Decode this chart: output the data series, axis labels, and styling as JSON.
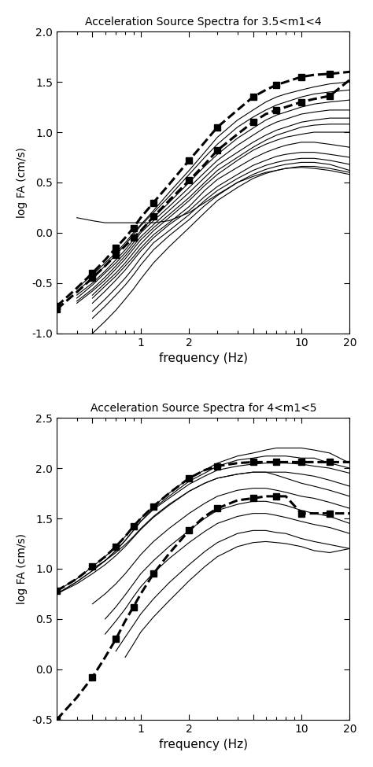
{
  "title1": "Acceleration Source Spectra for 3.5<m1<4",
  "title2": "Acceleration Source Spectra for 4<m1<5",
  "xlabel": "frequency (Hz)",
  "ylabel": "log FA (cm/s)",
  "plot1_dashed_upper_freq": [
    0.3,
    0.4,
    0.5,
    0.6,
    0.7,
    0.8,
    0.9,
    1.0,
    1.2,
    1.5,
    2.0,
    2.5,
    3.0,
    4.0,
    5.0,
    6.0,
    7.0,
    8.0,
    10.0,
    12.0,
    15.0,
    20.0
  ],
  "plot1_dashed_upper_val": [
    -0.73,
    -0.55,
    -0.4,
    -0.27,
    -0.15,
    -0.05,
    0.05,
    0.15,
    0.3,
    0.48,
    0.72,
    0.9,
    1.05,
    1.22,
    1.35,
    1.42,
    1.47,
    1.5,
    1.55,
    1.57,
    1.58,
    1.6
  ],
  "plot1_dashed_lower_freq": [
    0.3,
    0.4,
    0.5,
    0.6,
    0.7,
    0.8,
    0.9,
    1.0,
    1.2,
    1.5,
    2.0,
    2.5,
    3.0,
    4.0,
    5.0,
    6.0,
    7.0,
    8.0,
    10.0,
    12.0,
    15.0,
    20.0
  ],
  "plot1_dashed_lower_val": [
    -0.76,
    -0.59,
    -0.45,
    -0.33,
    -0.22,
    -0.13,
    -0.05,
    0.02,
    0.16,
    0.32,
    0.52,
    0.68,
    0.82,
    0.98,
    1.1,
    1.18,
    1.22,
    1.25,
    1.3,
    1.33,
    1.36,
    1.52
  ],
  "plot1_lines": [
    {
      "freq": [
        0.4,
        0.5,
        0.6,
        0.7,
        0.8,
        0.9,
        1.0,
        1.2,
        1.5,
        2.0,
        2.5,
        3.0,
        4.0,
        5.0,
        6.0,
        7.0,
        8.0,
        10.0,
        12.0,
        15.0,
        20.0
      ],
      "val": [
        -0.55,
        -0.42,
        -0.3,
        -0.2,
        -0.1,
        0.0,
        0.08,
        0.22,
        0.4,
        0.62,
        0.8,
        0.95,
        1.12,
        1.22,
        1.3,
        1.35,
        1.38,
        1.42,
        1.45,
        1.48,
        1.5
      ]
    },
    {
      "freq": [
        0.4,
        0.5,
        0.6,
        0.7,
        0.8,
        0.9,
        1.0,
        1.2,
        1.5,
        2.0,
        2.5,
        3.0,
        4.0,
        5.0,
        6.0,
        7.0,
        8.0,
        10.0,
        12.0,
        15.0,
        20.0
      ],
      "val": [
        -0.58,
        -0.45,
        -0.33,
        -0.22,
        -0.12,
        -0.02,
        0.07,
        0.2,
        0.36,
        0.58,
        0.75,
        0.88,
        1.05,
        1.15,
        1.22,
        1.27,
        1.3,
        1.35,
        1.38,
        1.4,
        1.42
      ]
    },
    {
      "freq": [
        0.4,
        0.5,
        0.6,
        0.7,
        0.8,
        0.9,
        1.0,
        1.2,
        1.5,
        2.0,
        2.5,
        3.0,
        4.0,
        5.0,
        6.0,
        7.0,
        8.0,
        10.0,
        12.0,
        15.0,
        20.0
      ],
      "val": [
        -0.62,
        -0.5,
        -0.38,
        -0.27,
        -0.17,
        -0.07,
        0.02,
        0.15,
        0.3,
        0.5,
        0.66,
        0.78,
        0.94,
        1.04,
        1.12,
        1.17,
        1.2,
        1.25,
        1.28,
        1.3,
        1.32
      ]
    },
    {
      "freq": [
        0.4,
        0.5,
        0.6,
        0.7,
        0.8,
        0.9,
        1.0,
        1.2,
        1.5,
        2.0,
        2.5,
        3.0,
        4.0,
        5.0,
        6.0,
        7.0,
        8.0,
        10.0,
        12.0,
        15.0,
        20.0
      ],
      "val": [
        -0.65,
        -0.52,
        -0.4,
        -0.3,
        -0.2,
        -0.1,
        0.0,
        0.12,
        0.26,
        0.45,
        0.6,
        0.72,
        0.87,
        0.97,
        1.05,
        1.1,
        1.13,
        1.18,
        1.2,
        1.22,
        1.22
      ]
    },
    {
      "freq": [
        0.4,
        0.5,
        0.6,
        0.7,
        0.8,
        0.9,
        1.0,
        1.2,
        1.5,
        2.0,
        2.5,
        3.0,
        4.0,
        5.0,
        6.0,
        7.0,
        8.0,
        10.0,
        12.0,
        15.0,
        20.0
      ],
      "val": [
        -0.68,
        -0.56,
        -0.44,
        -0.33,
        -0.23,
        -0.13,
        -0.04,
        0.08,
        0.22,
        0.4,
        0.55,
        0.67,
        0.8,
        0.9,
        0.97,
        1.02,
        1.05,
        1.1,
        1.12,
        1.14,
        1.14
      ]
    },
    {
      "freq": [
        0.4,
        0.5,
        0.6,
        0.7,
        0.8,
        0.9,
        1.0,
        1.2,
        1.5,
        2.0,
        2.5,
        3.0,
        4.0,
        5.0,
        6.0,
        7.0,
        8.0,
        10.0,
        12.0,
        15.0,
        20.0
      ],
      "val": [
        -0.7,
        -0.58,
        -0.47,
        -0.36,
        -0.26,
        -0.16,
        -0.07,
        0.05,
        0.18,
        0.35,
        0.5,
        0.62,
        0.75,
        0.85,
        0.92,
        0.97,
        1.0,
        1.05,
        1.07,
        1.08,
        1.08
      ]
    },
    {
      "freq": [
        0.5,
        0.6,
        0.7,
        0.8,
        0.9,
        1.0,
        1.2,
        1.5,
        2.0,
        2.5,
        3.0,
        4.0,
        5.0,
        6.0,
        7.0,
        8.0,
        10.0,
        12.0,
        15.0,
        20.0
      ],
      "val": [
        -0.62,
        -0.5,
        -0.4,
        -0.3,
        -0.2,
        -0.11,
        0.02,
        0.15,
        0.32,
        0.47,
        0.58,
        0.72,
        0.82,
        0.88,
        0.92,
        0.95,
        0.98,
        1.0,
        1.0,
        1.0
      ]
    },
    {
      "freq": [
        0.5,
        0.6,
        0.7,
        0.8,
        0.9,
        1.0,
        1.2,
        1.5,
        2.0,
        2.5,
        3.0,
        4.0,
        5.0,
        6.0,
        7.0,
        8.0,
        10.0,
        12.0,
        15.0,
        20.0
      ],
      "val": [
        -0.65,
        -0.53,
        -0.43,
        -0.33,
        -0.24,
        -0.15,
        -0.02,
        0.1,
        0.26,
        0.42,
        0.53,
        0.65,
        0.74,
        0.8,
        0.84,
        0.87,
        0.9,
        0.9,
        0.88,
        0.85
      ]
    },
    {
      "freq": [
        0.5,
        0.6,
        0.7,
        0.8,
        0.9,
        1.0,
        1.2,
        1.5,
        2.0,
        2.5,
        3.0,
        4.0,
        5.0,
        6.0,
        7.0,
        8.0,
        10.0,
        12.0,
        15.0,
        20.0
      ],
      "val": [
        -0.7,
        -0.58,
        -0.47,
        -0.37,
        -0.27,
        -0.18,
        -0.05,
        0.08,
        0.22,
        0.36,
        0.46,
        0.58,
        0.67,
        0.72,
        0.76,
        0.78,
        0.8,
        0.8,
        0.78,
        0.75
      ]
    },
    {
      "freq": [
        0.5,
        0.6,
        0.7,
        0.8,
        0.9,
        1.0,
        1.2,
        1.5,
        2.0,
        2.5,
        3.0,
        4.0,
        5.0,
        6.0,
        7.0,
        8.0,
        10.0,
        12.0,
        15.0,
        20.0
      ],
      "val": [
        -0.78,
        -0.66,
        -0.55,
        -0.45,
        -0.35,
        -0.25,
        -0.1,
        0.02,
        0.18,
        0.32,
        0.42,
        0.54,
        0.62,
        0.67,
        0.7,
        0.72,
        0.74,
        0.74,
        0.72,
        0.68
      ]
    },
    {
      "freq": [
        0.5,
        0.6,
        0.7,
        0.8,
        0.9,
        1.0,
        1.2,
        1.5,
        2.0,
        2.5,
        3.0,
        4.0,
        5.0,
        6.0,
        7.0,
        8.0,
        10.0,
        12.0,
        15.0,
        20.0
      ],
      "val": [
        -0.85,
        -0.73,
        -0.62,
        -0.52,
        -0.42,
        -0.32,
        -0.17,
        -0.03,
        0.13,
        0.27,
        0.37,
        0.5,
        0.58,
        0.63,
        0.66,
        0.68,
        0.7,
        0.7,
        0.68,
        0.62
      ]
    },
    {
      "freq": [
        0.5,
        0.6,
        0.7,
        0.8,
        0.9,
        1.0,
        1.2,
        1.5,
        2.0,
        2.5,
        3.0,
        4.0,
        5.0,
        6.0,
        7.0,
        8.0,
        10.0,
        12.0,
        15.0,
        20.0
      ],
      "val": [
        -1.0,
        -0.88,
        -0.77,
        -0.66,
        -0.56,
        -0.46,
        -0.3,
        -0.14,
        0.05,
        0.2,
        0.32,
        0.45,
        0.54,
        0.59,
        0.62,
        0.64,
        0.66,
        0.66,
        0.64,
        0.6
      ]
    },
    {
      "freq": [
        0.4,
        0.5,
        0.6,
        0.7,
        0.8,
        0.9,
        1.0,
        1.2,
        1.5,
        2.0,
        2.5,
        3.0,
        4.0,
        5.0,
        6.0,
        7.0,
        8.0,
        10.0,
        12.0,
        15.0,
        20.0
      ],
      "val": [
        0.15,
        0.12,
        0.1,
        0.1,
        0.1,
        0.1,
        0.1,
        0.1,
        0.12,
        0.2,
        0.3,
        0.38,
        0.5,
        0.56,
        0.6,
        0.62,
        0.64,
        0.65,
        0.64,
        0.62,
        0.58
      ]
    }
  ],
  "plot2_dashed_upper_freq": [
    0.3,
    0.4,
    0.5,
    0.6,
    0.7,
    0.8,
    0.9,
    1.0,
    1.2,
    1.5,
    2.0,
    2.5,
    3.0,
    4.0,
    5.0,
    6.0,
    7.0,
    8.0,
    10.0,
    12.0,
    15.0,
    20.0
  ],
  "plot2_dashed_upper_val": [
    0.78,
    0.9,
    1.02,
    1.12,
    1.22,
    1.32,
    1.42,
    1.5,
    1.62,
    1.75,
    1.9,
    1.98,
    2.02,
    2.05,
    2.06,
    2.06,
    2.06,
    2.06,
    2.06,
    2.06,
    2.06,
    2.06
  ],
  "plot2_dashed_lower_freq": [
    0.3,
    0.4,
    0.5,
    0.6,
    0.7,
    0.8,
    0.9,
    1.0,
    1.2,
    1.5,
    2.0,
    2.5,
    3.0,
    4.0,
    5.0,
    6.0,
    7.0,
    8.0,
    10.0,
    12.0,
    15.0,
    20.0
  ],
  "plot2_dashed_lower_val": [
    -0.5,
    -0.28,
    -0.08,
    0.12,
    0.3,
    0.48,
    0.62,
    0.75,
    0.95,
    1.15,
    1.38,
    1.52,
    1.6,
    1.68,
    1.7,
    1.72,
    1.72,
    1.72,
    1.55,
    1.55,
    1.55,
    1.55
  ],
  "plot2_lines": [
    {
      "freq": [
        0.3,
        0.4,
        0.5,
        0.6,
        0.7,
        0.8,
        0.9,
        1.0,
        1.2,
        1.5,
        2.0,
        2.5,
        3.0,
        4.0,
        5.0,
        6.0,
        7.0,
        8.0,
        10.0,
        12.0,
        15.0,
        20.0
      ],
      "val": [
        0.78,
        0.9,
        1.02,
        1.12,
        1.22,
        1.32,
        1.42,
        1.5,
        1.62,
        1.75,
        1.9,
        1.98,
        2.05,
        2.12,
        2.15,
        2.18,
        2.2,
        2.2,
        2.2,
        2.18,
        2.15,
        2.05
      ]
    },
    {
      "freq": [
        0.3,
        0.4,
        0.5,
        0.6,
        0.7,
        0.8,
        0.9,
        1.0,
        1.2,
        1.5,
        2.0,
        2.5,
        3.0,
        4.0,
        5.0,
        6.0,
        7.0,
        8.0,
        10.0,
        12.0,
        15.0,
        20.0
      ],
      "val": [
        0.75,
        0.87,
        0.98,
        1.08,
        1.18,
        1.28,
        1.38,
        1.47,
        1.6,
        1.72,
        1.87,
        1.95,
        2.02,
        2.08,
        2.1,
        2.12,
        2.12,
        2.12,
        2.1,
        2.1,
        2.05,
        2.0
      ]
    },
    {
      "freq": [
        0.3,
        0.4,
        0.5,
        0.6,
        0.7,
        0.8,
        0.9,
        1.0,
        1.2,
        1.5,
        2.0,
        2.5,
        3.0,
        4.0,
        5.0,
        6.0,
        7.0,
        8.0,
        10.0,
        12.0,
        15.0,
        20.0
      ],
      "val": [
        0.75,
        0.87,
        0.98,
        1.08,
        1.18,
        1.28,
        1.38,
        1.47,
        1.59,
        1.7,
        1.84,
        1.92,
        1.98,
        2.02,
        2.04,
        2.05,
        2.05,
        2.05,
        2.04,
        2.02,
        2.0,
        1.95
      ]
    },
    {
      "freq": [
        0.3,
        0.4,
        0.5,
        0.6,
        0.7,
        0.8,
        0.9,
        1.0,
        1.2,
        1.5,
        2.0,
        2.5,
        3.0,
        4.0,
        5.0,
        6.0,
        7.0,
        8.0,
        10.0,
        12.0,
        15.0,
        20.0
      ],
      "val": [
        0.75,
        0.85,
        0.95,
        1.04,
        1.13,
        1.22,
        1.31,
        1.39,
        1.51,
        1.63,
        1.77,
        1.85,
        1.9,
        1.94,
        1.96,
        1.96,
        1.96,
        1.96,
        1.94,
        1.92,
        1.88,
        1.82
      ]
    },
    {
      "freq": [
        0.5,
        0.6,
        0.7,
        0.8,
        0.9,
        1.0,
        1.2,
        1.5,
        2.0,
        2.5,
        3.0,
        4.0,
        5.0,
        6.0,
        7.0,
        8.0,
        10.0,
        12.0,
        15.0,
        20.0
      ],
      "val": [
        1.0,
        1.08,
        1.16,
        1.24,
        1.32,
        1.4,
        1.52,
        1.64,
        1.77,
        1.85,
        1.9,
        1.94,
        1.96,
        1.96,
        1.93,
        1.9,
        1.85,
        1.82,
        1.78,
        1.72
      ]
    },
    {
      "freq": [
        0.5,
        0.6,
        0.7,
        0.8,
        0.9,
        1.0,
        1.2,
        1.5,
        2.0,
        2.5,
        3.0,
        4.0,
        5.0,
        6.0,
        7.0,
        8.0,
        10.0,
        12.0,
        15.0,
        20.0
      ],
      "val": [
        0.65,
        0.75,
        0.85,
        0.95,
        1.05,
        1.14,
        1.27,
        1.4,
        1.55,
        1.65,
        1.72,
        1.78,
        1.8,
        1.8,
        1.78,
        1.76,
        1.72,
        1.7,
        1.66,
        1.6
      ]
    },
    {
      "freq": [
        0.6,
        0.7,
        0.8,
        0.9,
        1.0,
        1.2,
        1.5,
        2.0,
        2.5,
        3.0,
        4.0,
        5.0,
        6.0,
        7.0,
        8.0,
        10.0,
        12.0,
        15.0,
        20.0
      ],
      "val": [
        0.5,
        0.62,
        0.74,
        0.85,
        0.95,
        1.08,
        1.22,
        1.38,
        1.5,
        1.58,
        1.64,
        1.67,
        1.67,
        1.65,
        1.63,
        1.58,
        1.55,
        1.52,
        1.45
      ]
    },
    {
      "freq": [
        0.6,
        0.7,
        0.8,
        0.9,
        1.0,
        1.2,
        1.5,
        2.0,
        2.5,
        3.0,
        4.0,
        5.0,
        6.0,
        7.0,
        8.0,
        10.0,
        12.0,
        15.0,
        20.0
      ],
      "val": [
        0.35,
        0.48,
        0.6,
        0.72,
        0.82,
        0.96,
        1.1,
        1.26,
        1.37,
        1.45,
        1.52,
        1.55,
        1.55,
        1.53,
        1.51,
        1.47,
        1.44,
        1.41,
        1.35
      ]
    },
    {
      "freq": [
        0.7,
        0.8,
        0.9,
        1.0,
        1.2,
        1.5,
        2.0,
        2.5,
        3.0,
        4.0,
        5.0,
        6.0,
        7.0,
        8.0,
        10.0,
        12.0,
        15.0,
        20.0
      ],
      "val": [
        0.18,
        0.32,
        0.44,
        0.55,
        0.7,
        0.86,
        1.04,
        1.17,
        1.26,
        1.35,
        1.38,
        1.38,
        1.36,
        1.35,
        1.3,
        1.27,
        1.24,
        1.2
      ]
    },
    {
      "freq": [
        0.8,
        0.9,
        1.0,
        1.2,
        1.5,
        2.0,
        2.5,
        3.0,
        4.0,
        5.0,
        6.0,
        7.0,
        8.0,
        10.0,
        12.0,
        15.0,
        20.0
      ],
      "val": [
        0.12,
        0.25,
        0.37,
        0.52,
        0.68,
        0.88,
        1.02,
        1.12,
        1.22,
        1.26,
        1.27,
        1.26,
        1.25,
        1.22,
        1.18,
        1.16,
        1.2
      ]
    }
  ],
  "ylim1": [
    -1.0,
    2.0
  ],
  "ylim2": [
    -0.5,
    2.5
  ],
  "yticks1": [
    -1.0,
    -0.5,
    0.0,
    0.5,
    1.0,
    1.5,
    2.0
  ],
  "yticks2": [
    -0.5,
    0.0,
    0.5,
    1.0,
    1.5,
    2.0,
    2.5
  ],
  "xlim": [
    0.3,
    20.0
  ],
  "background": "#ffffff",
  "linecolor": "#000000"
}
